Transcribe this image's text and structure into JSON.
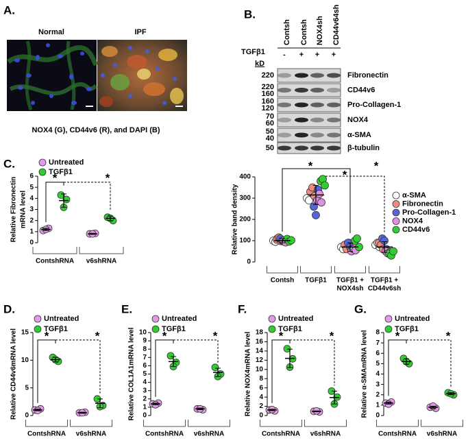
{
  "panel_a": {
    "label": "A.",
    "images": [
      "Normal",
      "IPF"
    ],
    "caption": "NOX4 (G), CD44v6 (R), and DAPI (B)"
  },
  "panel_b": {
    "label": "B.",
    "lanes": [
      "Contsh",
      "Contsh",
      "NOX4sh",
      "CD44v64sh"
    ],
    "treatment_label": "TGFβ1",
    "treatment": [
      "-",
      "+",
      "+",
      "+"
    ],
    "unit": "kD",
    "bands": [
      {
        "name": "Fibronectin",
        "mw": [
          220
        ]
      },
      {
        "name": "CD44v6",
        "mw": [
          220,
          160
        ]
      },
      {
        "name": "Pro-Collagen-1",
        "mw": [
          160,
          120
        ]
      },
      {
        "name": "NOX4",
        "mw": [
          70,
          60
        ]
      },
      {
        "name": "α-SMA",
        "mw": [
          50,
          40
        ]
      },
      {
        "name": "β-tubulin",
        "mw": [
          50
        ]
      }
    ]
  },
  "chart_data": [
    {
      "type": "dot",
      "panel": "C.",
      "ylabel": [
        "Relative Fibronectin",
        "mRNA level"
      ],
      "categories": [
        [
          "ContshRNA"
        ],
        [
          "v6shRNA"
        ]
      ],
      "ylim": [
        0,
        6
      ],
      "yticks": [
        0,
        1,
        2,
        3,
        4,
        5,
        6
      ],
      "series": [
        {
          "name": "Untreated",
          "color": "#e39be6",
          "values": [
            [
              1.1,
              1.3,
              1.2
            ],
            [
              0.8,
              0.85,
              0.8
            ]
          ],
          "mean": [
            1.2,
            0.8
          ],
          "sd": [
            0.1,
            0.05
          ]
        },
        {
          "name": "TGFβ1",
          "color": "#33cc33",
          "values": [
            [
              4.3,
              3.9,
              3.2
            ],
            [
              2.3,
              2.0,
              2.2
            ]
          ],
          "mean": [
            3.8,
            2.2
          ],
          "sd": [
            0.6,
            0.2
          ]
        }
      ],
      "annotations": [
        "*",
        "*"
      ]
    },
    {
      "type": "dot",
      "ylabel": [
        "Relative band density"
      ],
      "categories": [
        [
          "Contsh"
        ],
        [
          "TGFβ1"
        ],
        [
          "TGFβ1 +",
          "NOX4sh"
        ],
        [
          "TGFβ1 +",
          "CD44v6sh"
        ]
      ],
      "ylim": [
        0,
        400
      ],
      "yticks": [
        0,
        100,
        200,
        300,
        400
      ],
      "series": [
        {
          "name": "α-SMA",
          "color": "#ffffff",
          "values": [
            [
              100,
              95,
              110
            ],
            [
              300,
              290,
              330
            ],
            [
              70,
              60,
              80
            ],
            [
              80,
              90,
              70
            ]
          ]
        },
        {
          "name": "Fibronectin",
          "color": "#f08a7c",
          "values": [
            [
              105,
              115,
              98
            ],
            [
              330,
              350,
              310
            ],
            [
              80,
              60,
              90
            ],
            [
              90,
              80,
              60
            ]
          ]
        },
        {
          "name": "Pro-Collagen-1",
          "color": "#5566dd",
          "values": [
            [
              110,
              100,
              95
            ],
            [
              260,
              220,
              340
            ],
            [
              90,
              70,
              60
            ],
            [
              110,
              100,
              60
            ]
          ]
        },
        {
          "name": "NOX4",
          "color": "#e090e0",
          "values": [
            [
              100,
              92,
              105
            ],
            [
              290,
              320,
              280
            ],
            [
              50,
              60,
              55
            ],
            [
              50,
              40,
              45
            ]
          ]
        },
        {
          "name": "CD44v6",
          "color": "#33cc33",
          "values": [
            [
              108,
              96,
              102
            ],
            [
              380,
              390,
              360
            ],
            [
              100,
              110,
              70
            ],
            [
              40,
              30,
              50
            ]
          ]
        }
      ],
      "means": [
        100,
        315,
        70,
        70
      ],
      "sd": [
        10,
        45,
        20,
        25
      ],
      "annotations": [
        "*",
        "*",
        "*"
      ]
    },
    {
      "type": "dot",
      "panel": "D.",
      "ylabel": [
        "Relative CD44v6mRNA level"
      ],
      "categories": [
        [
          "ContshRNA"
        ],
        [
          "v6shRNA"
        ]
      ],
      "ylim": [
        0,
        15
      ],
      "yticks": [
        0,
        5,
        10,
        15
      ],
      "series": [
        {
          "name": "Untreated",
          "color": "#e39be6",
          "values": [
            [
              1.0,
              1.2,
              0.9
            ],
            [
              0.5,
              0.6,
              0.5
            ]
          ],
          "mean": [
            1.0,
            0.5
          ],
          "sd": [
            0.15,
            0.1
          ]
        },
        {
          "name": "TGFβ1",
          "color": "#33cc33",
          "values": [
            [
              10.5,
              9.8,
              10.1
            ],
            [
              3.0,
              1.8,
              1.6
            ]
          ],
          "mean": [
            10.1,
            2.2
          ],
          "sd": [
            0.4,
            0.8
          ]
        }
      ],
      "annotations": [
        "*",
        "*"
      ]
    },
    {
      "type": "dot",
      "panel": "E.",
      "ylabel": [
        "Relative COL1A1mRNA level"
      ],
      "categories": [
        [
          "ContshRNA"
        ],
        [
          "v6shRNA"
        ]
      ],
      "ylim": [
        0,
        10
      ],
      "yticks": [
        0,
        1,
        2,
        3,
        4,
        5,
        6,
        7,
        8,
        9,
        10
      ],
      "series": [
        {
          "name": "Untreated",
          "color": "#e39be6",
          "values": [
            [
              1.4,
              1.5,
              1.3
            ],
            [
              0.8,
              0.7,
              0.8
            ]
          ],
          "mean": [
            1.4,
            0.8
          ],
          "sd": [
            0.1,
            0.1
          ]
        },
        {
          "name": "TGFβ1",
          "color": "#33cc33",
          "values": [
            [
              7.2,
              6.4,
              5.9
            ],
            [
              5.8,
              5.0,
              4.7
            ]
          ],
          "mean": [
            6.5,
            5.2
          ],
          "sd": [
            0.6,
            0.5
          ]
        }
      ],
      "annotations": [
        "*",
        "*"
      ]
    },
    {
      "type": "dot",
      "panel": "F.",
      "ylabel": [
        "Relative NOX4mRNA level"
      ],
      "categories": [
        [
          "ContshRNA"
        ],
        [
          "v6shRNA"
        ]
      ],
      "ylim": [
        0,
        18
      ],
      "yticks": [
        0,
        2,
        4,
        6,
        8,
        10,
        12,
        14,
        16,
        18
      ],
      "series": [
        {
          "name": "Untreated",
          "color": "#e39be6",
          "values": [
            [
              1.2,
              1.0,
              1.3
            ],
            [
              0.9,
              0.8,
              1.0
            ]
          ],
          "mean": [
            1.2,
            0.9
          ],
          "sd": [
            0.15,
            0.1
          ]
        },
        {
          "name": "TGFβ1",
          "color": "#33cc33",
          "values": [
            [
              14.5,
              12.3,
              10.5
            ],
            [
              5.3,
              4.0,
              2.5
            ]
          ],
          "mean": [
            12.4,
            3.9
          ],
          "sd": [
            2.0,
            1.4
          ]
        }
      ],
      "annotations": [
        "*",
        "*"
      ]
    },
    {
      "type": "dot",
      "panel": "G.",
      "ylabel": [
        "Relative α-SMAmRNA level"
      ],
      "categories": [
        [
          "ContshRNA"
        ],
        [
          "v6shRNA"
        ]
      ],
      "ylim": [
        0,
        8
      ],
      "yticks": [
        0,
        1,
        2,
        3,
        4,
        5,
        6,
        7,
        8
      ],
      "series": [
        {
          "name": "Untreated",
          "color": "#e39be6",
          "values": [
            [
              1.2,
              1.3,
              1.1
            ],
            [
              0.8,
              0.7,
              0.9
            ]
          ],
          "mean": [
            1.2,
            0.8
          ],
          "sd": [
            0.1,
            0.1
          ]
        },
        {
          "name": "TGFβ1",
          "color": "#33cc33",
          "values": [
            [
              5.5,
              5.0,
              5.2
            ],
            [
              2.2,
              2.0,
              2.1
            ]
          ],
          "mean": [
            5.2,
            2.1
          ],
          "sd": [
            0.25,
            0.1
          ]
        }
      ],
      "annotations": [
        "*",
        "*"
      ]
    }
  ]
}
